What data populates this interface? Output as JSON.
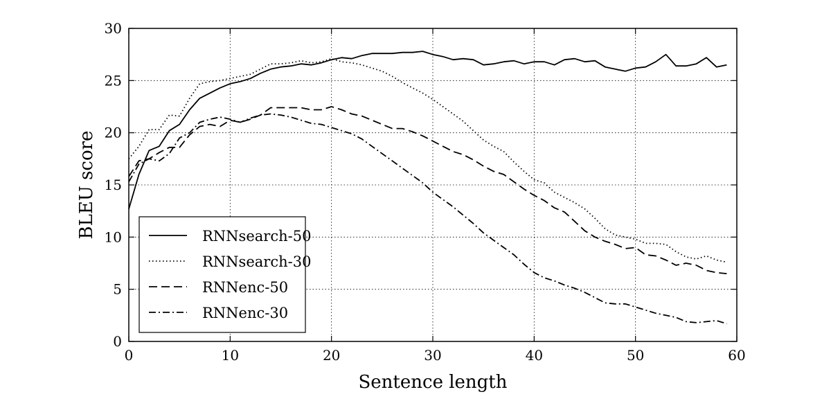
{
  "chart_data": {
    "type": "line",
    "title": "",
    "xlabel": "Sentence length",
    "ylabel": "BLEU score",
    "xlim": [
      0,
      60
    ],
    "ylim": [
      0,
      30
    ],
    "xticks": [
      0,
      10,
      20,
      30,
      40,
      50,
      60
    ],
    "yticks": [
      0,
      5,
      10,
      15,
      20,
      25,
      30
    ],
    "grid": true,
    "legend_position": "bottom-left",
    "x": [
      0,
      1,
      2,
      3,
      4,
      5,
      6,
      7,
      8,
      9,
      10,
      11,
      12,
      13,
      14,
      15,
      16,
      17,
      18,
      19,
      20,
      21,
      22,
      23,
      24,
      25,
      26,
      27,
      28,
      29,
      30,
      31,
      32,
      33,
      34,
      35,
      36,
      37,
      38,
      39,
      40,
      41,
      42,
      43,
      44,
      45,
      46,
      47,
      48,
      49,
      50,
      51,
      52,
      53,
      54,
      55,
      56,
      57,
      58,
      59
    ],
    "series": [
      {
        "name": "RNNsearch-50",
        "style": "solid",
        "color": "#000000",
        "values": [
          12.7,
          16,
          18.3,
          18.7,
          20.2,
          20.8,
          22.2,
          23.3,
          23.8,
          24.3,
          24.7,
          24.9,
          25.2,
          25.7,
          26.1,
          26.3,
          26.4,
          26.6,
          26.5,
          26.7,
          27,
          27.2,
          27.1,
          27.4,
          27.6,
          27.6,
          27.6,
          27.7,
          27.7,
          27.8,
          27.5,
          27.3,
          27,
          27.1,
          27,
          26.5,
          26.6,
          26.8,
          26.9,
          26.6,
          26.8,
          26.8,
          26.5,
          27,
          27.1,
          26.8,
          26.9,
          26.3,
          26.1,
          25.9,
          26.2,
          26.3,
          26.8,
          27.5,
          26.4,
          26.4,
          26.6,
          27.2,
          26.3,
          26.5
        ]
      },
      {
        "name": "RNNsearch-30",
        "style": "dotted",
        "color": "#000000",
        "values": [
          17.5,
          18.7,
          20.3,
          20.3,
          21.7,
          21.6,
          23.3,
          24.7,
          24.9,
          25,
          25.2,
          25.4,
          25.6,
          26.1,
          26.6,
          26.6,
          26.7,
          26.9,
          26.7,
          26.8,
          27.1,
          26.8,
          26.7,
          26.5,
          26.2,
          25.9,
          25.4,
          24.8,
          24.3,
          23.8,
          23.2,
          22.5,
          21.8,
          21.1,
          20.2,
          19.3,
          18.7,
          18.2,
          17.2,
          16.3,
          15.5,
          15.2,
          14.3,
          13.8,
          13.3,
          12.7,
          11.8,
          10.8,
          10.2,
          10,
          9.8,
          9.4,
          9.4,
          9.3,
          8.6,
          8.1,
          7.9,
          8.2,
          7.8,
          7.6
        ]
      },
      {
        "name": "RNNenc-50",
        "style": "dashed",
        "color": "#000000",
        "values": [
          15.8,
          17.3,
          17.5,
          18.1,
          18.6,
          18.6,
          19.8,
          20.6,
          20.8,
          20.6,
          21.2,
          21,
          21.3,
          21.7,
          22.4,
          22.4,
          22.4,
          22.4,
          22.2,
          22.2,
          22.5,
          22.2,
          21.8,
          21.6,
          21.2,
          20.8,
          20.4,
          20.4,
          20.1,
          19.7,
          19.2,
          18.7,
          18.2,
          17.9,
          17.4,
          16.8,
          16.3,
          16,
          15.3,
          14.6,
          14,
          13.5,
          12.8,
          12.4,
          11.5,
          10.6,
          10,
          9.6,
          9.3,
          8.9,
          9,
          8.3,
          8.2,
          7.8,
          7.3,
          7.5,
          7.3,
          6.8,
          6.6,
          6.5
        ]
      },
      {
        "name": "RNNenc-30",
        "style": "dashdot",
        "color": "#000000",
        "values": [
          15.3,
          17,
          17.5,
          17.3,
          18,
          19.5,
          20,
          21,
          21.3,
          21.5,
          21.3,
          21,
          21.4,
          21.7,
          21.8,
          21.7,
          21.5,
          21.2,
          20.9,
          20.8,
          20.5,
          20.2,
          19.9,
          19.4,
          18.7,
          18,
          17.3,
          16.6,
          15.9,
          15.2,
          14.3,
          13.6,
          12.9,
          12.1,
          11.3,
          10.4,
          9.7,
          9,
          8.3,
          7.4,
          6.6,
          6.1,
          5.8,
          5.4,
          5.1,
          4.7,
          4.2,
          3.7,
          3.6,
          3.6,
          3.3,
          3,
          2.7,
          2.5,
          2.3,
          1.9,
          1.8,
          1.9,
          2,
          1.7
        ]
      }
    ]
  }
}
